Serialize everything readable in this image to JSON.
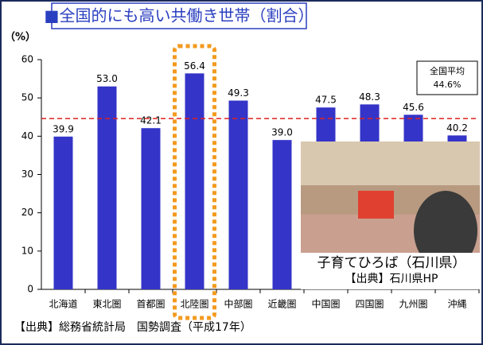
{
  "chart_data": {
    "type": "bar",
    "title": "■全国的にも高い共働き世帯（割合）",
    "y_label": "（%）",
    "categories": [
      "北海道",
      "東北圏",
      "首都圏",
      "北陸圏",
      "中部圏",
      "近畿圏",
      "中国圏",
      "四国圏",
      "九州圏",
      "沖縄"
    ],
    "values": [
      39.9,
      53.0,
      42.1,
      56.4,
      49.3,
      39.0,
      47.5,
      48.3,
      45.6,
      40.2
    ],
    "value_labels": [
      "39.9",
      "53.0",
      "42.1",
      "56.4",
      "49.3",
      "39.0",
      "47.5",
      "48.3",
      "45.6",
      "40.2"
    ],
    "color": "#3434c8",
    "ylim": [
      0,
      60
    ],
    "yticks": [
      0,
      10,
      20,
      30,
      40,
      50,
      60
    ],
    "grid": false,
    "highlight_category": 3,
    "reference_line": {
      "value": 44.6,
      "label": "全国平均",
      "value_label": "44.6%",
      "color": "#e02020"
    },
    "photo_caption": "子育てひろば（石川県）",
    "photo_source": "【出典】石川県HP",
    "source": "【出典】総務省統計局　国勢調査（平成17年）"
  }
}
